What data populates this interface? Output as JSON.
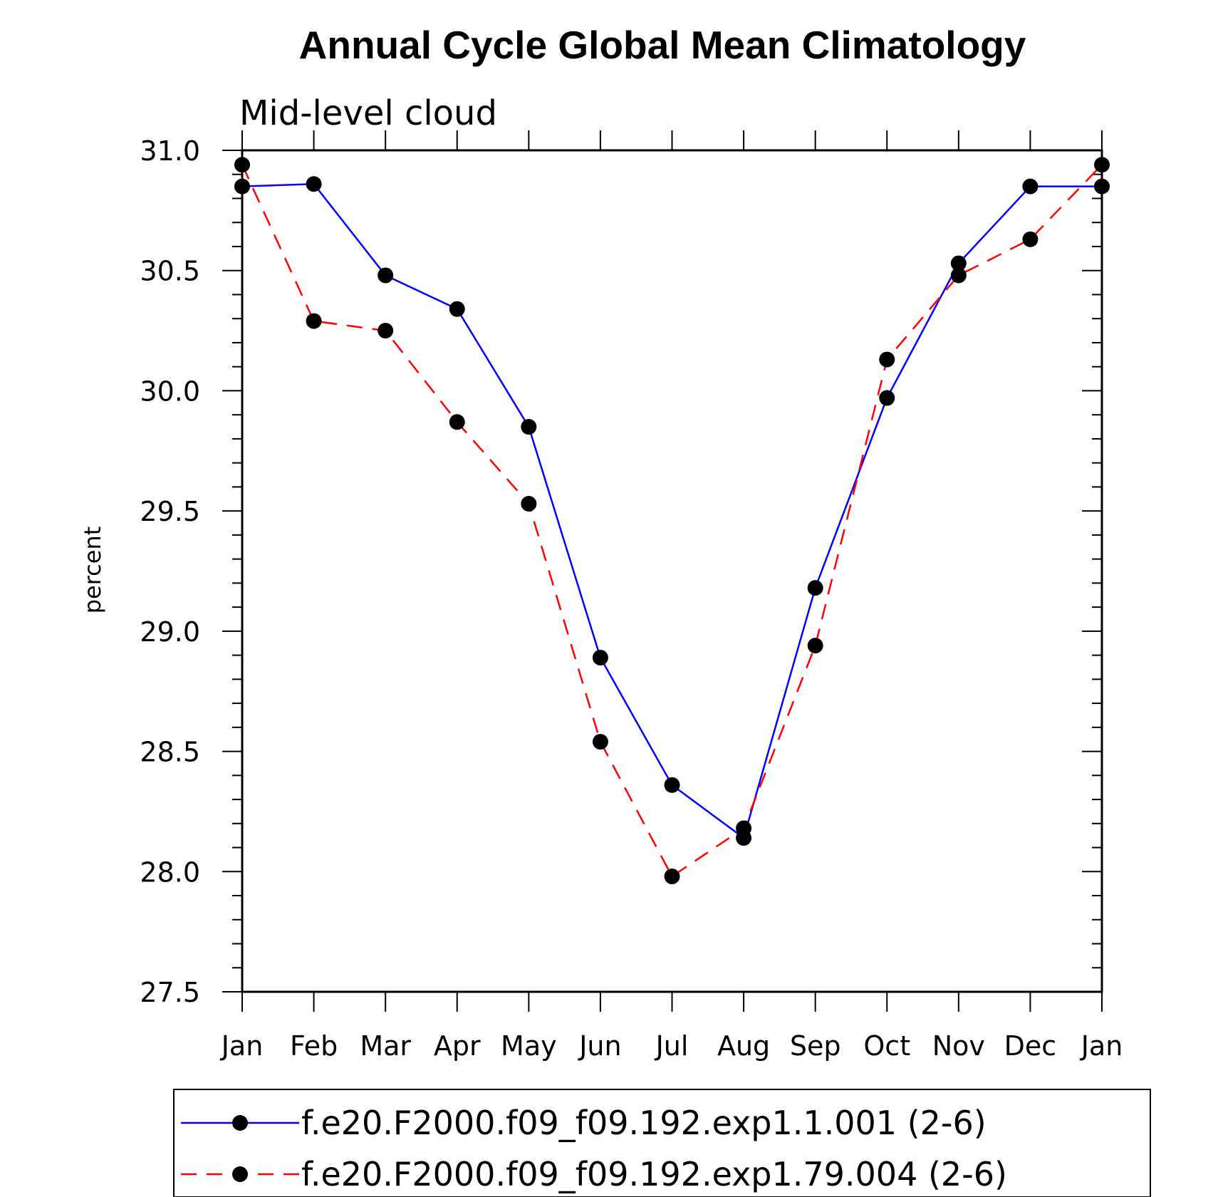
{
  "chart_data": {
    "type": "line",
    "title": "Annual Cycle Global Mean Climatology",
    "subtitle": "Mid-level cloud",
    "xlabel": "",
    "ylabel": "percent",
    "categories": [
      "Jan",
      "Feb",
      "Mar",
      "Apr",
      "May",
      "Jun",
      "Jul",
      "Aug",
      "Sep",
      "Oct",
      "Nov",
      "Dec",
      "Jan"
    ],
    "ylim": [
      27.5,
      31.0
    ],
    "yticks": [
      "27.5",
      "28.0",
      "28.5",
      "29.0",
      "29.5",
      "30.0",
      "30.5",
      "31.0"
    ],
    "series": [
      {
        "name": "f.e20.F2000.f09_f09.192.exp1.1.001 (2-6)",
        "color": "#0000ff",
        "dash": "solid",
        "marker": "filled-circle",
        "values": [
          30.85,
          30.86,
          30.48,
          30.34,
          29.85,
          28.89,
          28.36,
          28.14,
          29.18,
          29.97,
          30.53,
          30.85,
          30.85
        ]
      },
      {
        "name": "f.e20.F2000.f09_f09.192.exp1.79.004 (2-6)",
        "color": "#ff0000",
        "dash": "dashed",
        "marker": "filled-circle",
        "values": [
          30.94,
          30.29,
          30.25,
          29.87,
          29.53,
          28.54,
          27.98,
          28.18,
          28.94,
          30.13,
          30.48,
          30.63,
          30.94
        ]
      }
    ],
    "legend_position": "bottom",
    "grid": false
  }
}
